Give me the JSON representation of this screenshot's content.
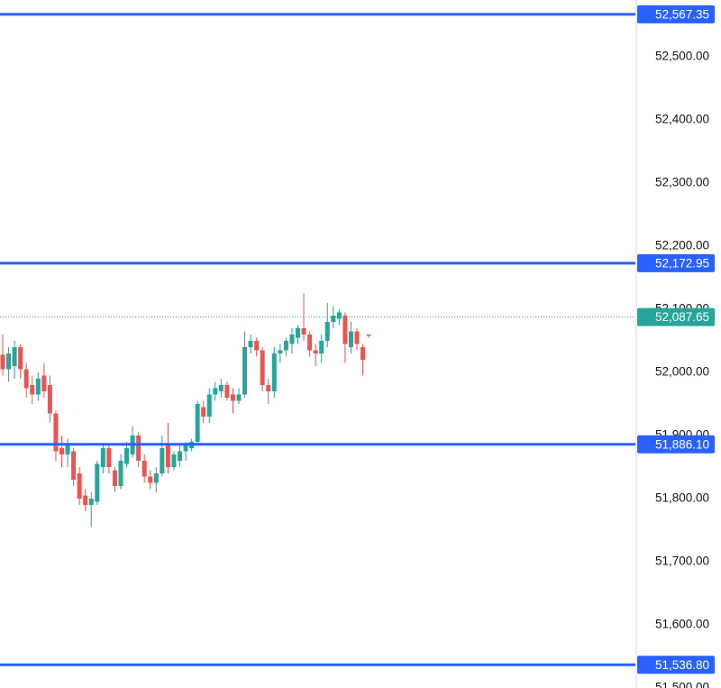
{
  "chart_data": {
    "type": "candlestick",
    "ylim": [
      51500,
      52590
    ],
    "yticks": [
      {
        "value": 52500,
        "label": "52,500.00"
      },
      {
        "value": 52400,
        "label": "52,400.00"
      },
      {
        "value": 52300,
        "label": "52,300.00"
      },
      {
        "value": 52200,
        "label": "52,200.00"
      },
      {
        "value": 52100,
        "label": "52,100.00"
      },
      {
        "value": 52000,
        "label": "52,000.00"
      },
      {
        "value": 51900,
        "label": "51,900.00"
      },
      {
        "value": 51800,
        "label": "51,800.00"
      },
      {
        "value": 51700,
        "label": "51,700.00"
      },
      {
        "value": 51600,
        "label": "51,600.00"
      },
      {
        "value": 51500,
        "label": "51,500.00"
      }
    ],
    "up_color": "#26a69a",
    "down_color": "#ef5350",
    "series": [
      {
        "open": [
          52028,
          52005,
          52010,
          52040,
          52005,
          51980,
          51965,
          51995,
          51980,
          51935,
          51880,
          51870,
          51875,
          51840,
          51805,
          51790,
          51795,
          51850,
          51880,
          51845,
          51820,
          51855,
          51870,
          51900,
          51860,
          51835,
          51825,
          51840,
          51885,
          51850,
          51860,
          51875,
          51880,
          51890,
          51945,
          51930,
          51965,
          51970,
          51980,
          51965,
          51955,
          51965,
          52040,
          52050,
          52035,
          51980,
          51970,
          52030,
          52035,
          52045,
          52055,
          52070,
          52060,
          52035,
          52030,
          52050,
          52080,
          52085,
          52090,
          52040,
          52065,
          52040,
          52060
        ],
        "high": [
          52060,
          52040,
          52050,
          52045,
          52015,
          51995,
          52000,
          52015,
          51995,
          51940,
          51900,
          51895,
          51880,
          51850,
          51815,
          51810,
          51860,
          51885,
          51885,
          51850,
          51870,
          51890,
          51915,
          51905,
          51870,
          51845,
          51850,
          51900,
          51920,
          51875,
          51885,
          51890,
          51895,
          51955,
          51955,
          51975,
          51985,
          51990,
          51985,
          51975,
          51975,
          52065,
          52060,
          52055,
          52040,
          51990,
          52040,
          52045,
          52055,
          52070,
          52075,
          52125,
          52065,
          52045,
          52060,
          52110,
          52105,
          52100,
          52095,
          52080,
          52070,
          52045,
          52060
        ],
        "low": [
          51995,
          51985,
          51990,
          51990,
          51960,
          51950,
          51955,
          51960,
          51920,
          51860,
          51850,
          51850,
          51820,
          51790,
          51780,
          51755,
          51790,
          51840,
          51840,
          51810,
          51815,
          51850,
          51865,
          51850,
          51825,
          51815,
          51810,
          51835,
          51840,
          51845,
          51850,
          51860,
          51875,
          51885,
          51920,
          51920,
          51955,
          51960,
          51955,
          51935,
          51950,
          51960,
          52030,
          52025,
          51970,
          51950,
          51960,
          52015,
          52025,
          52030,
          52045,
          52050,
          52025,
          52010,
          52015,
          52040,
          52070,
          52075,
          52015,
          52030,
          52035,
          51995,
          52055
        ],
        "close": [
          52005,
          52030,
          52040,
          52005,
          51975,
          51965,
          51990,
          51970,
          51935,
          51875,
          51870,
          51885,
          51830,
          51800,
          51790,
          51800,
          51855,
          51880,
          51850,
          51820,
          51860,
          51880,
          51900,
          51860,
          51835,
          51825,
          51840,
          51880,
          51850,
          51870,
          51875,
          51885,
          51890,
          51950,
          51930,
          51965,
          51975,
          51980,
          51960,
          51955,
          51965,
          52040,
          52050,
          52035,
          51980,
          51970,
          52030,
          52035,
          52050,
          52060,
          52070,
          52060,
          52035,
          52030,
          52050,
          52080,
          52090,
          52095,
          52045,
          52065,
          52045,
          52020,
          52058
        ]
      }
    ],
    "price_lines": [
      {
        "value": 52567.35,
        "label": "52,567.35",
        "color": "#2962ff",
        "style": "solid"
      },
      {
        "value": 52172.95,
        "label": "52,172.95",
        "color": "#2962ff",
        "style": "solid"
      },
      {
        "value": 52087.65,
        "label": "52,087.65",
        "color": "#26a69a",
        "style": "dotted"
      },
      {
        "value": 51886.1,
        "label": "51,886.10",
        "color": "#2962ff",
        "style": "solid"
      },
      {
        "value": 51536.8,
        "label": "51,536.80",
        "color": "#2962ff",
        "style": "solid"
      }
    ]
  }
}
